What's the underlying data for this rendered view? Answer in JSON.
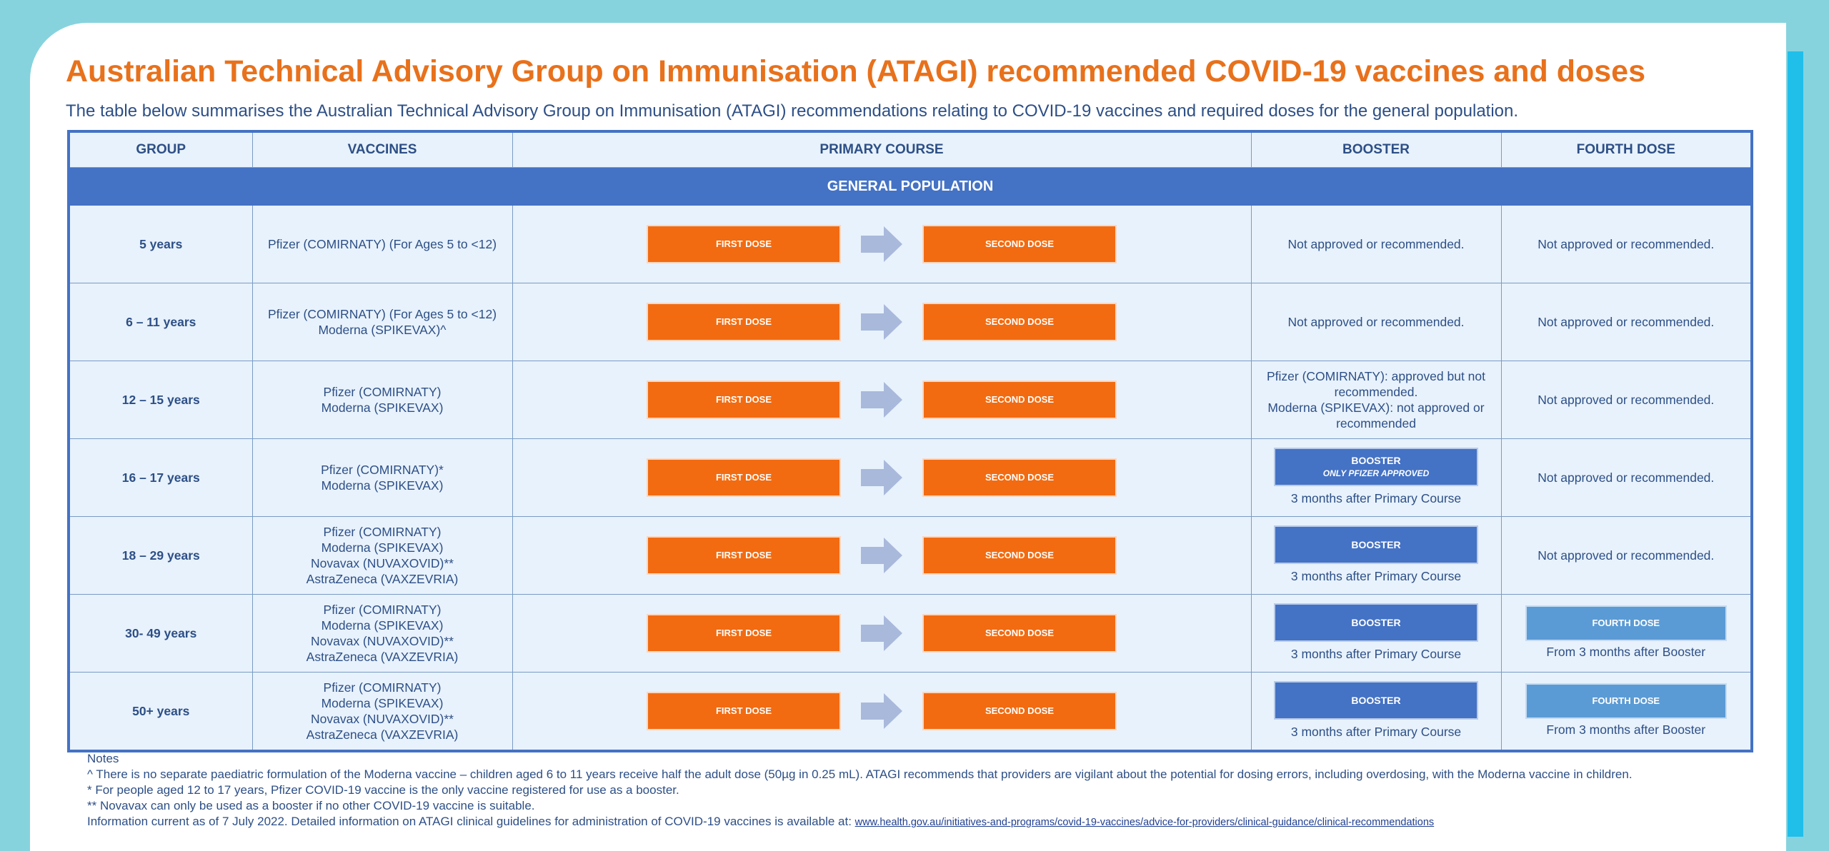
{
  "title": "Australian Technical Advisory Group on Immunisation (ATAGI) recommended COVID-19 vaccines and doses",
  "subtitle": "The table below summarises the Australian Technical Advisory Group on Immunisation (ATAGI) recommendations relating to COVID-19 vaccines and required doses for the general population.",
  "table": {
    "headers": [
      "GROUP",
      "VACCINES",
      "PRIMARY COURSE",
      "BOOSTER",
      "FOURTH DOSE"
    ],
    "section_label": "GENERAL POPULATION",
    "first_dose_label": "FIRST DOSE",
    "second_dose_label": "SECOND DOSE",
    "rows": [
      {
        "group": "5 years",
        "vaccines": [
          "Pfizer (COMIRNATY) (For Ages 5 to <12)"
        ],
        "booster_text": [
          "Not approved or recommended."
        ],
        "fourth_text": "Not approved or recommended."
      },
      {
        "group": "6 – 11 years",
        "vaccines": [
          "Pfizer (COMIRNATY) (For Ages 5 to <12)",
          "Moderna (SPIKEVAX)^"
        ],
        "booster_text": [
          "Not approved or recommended."
        ],
        "fourth_text": "Not approved or recommended."
      },
      {
        "group": "12 – 15 years",
        "vaccines": [
          "Pfizer (COMIRNATY)",
          "Moderna (SPIKEVAX)"
        ],
        "booster_text": [
          "Pfizer (COMIRNATY): approved but not",
          "recommended.",
          "Moderna (SPIKEVAX): not approved or",
          "recommended"
        ],
        "fourth_text": "Not approved or recommended."
      },
      {
        "group": "16 – 17 years",
        "vaccines": [
          "Pfizer (COMIRNATY)*",
          "Moderna (SPIKEVAX)"
        ],
        "booster_label": "BOOSTER",
        "booster_note": "ONLY PFIZER APPROVED",
        "booster_after": "3 months after Primary Course",
        "fourth_text": "Not approved or recommended."
      },
      {
        "group": "18 – 29 years",
        "vaccines": [
          "Pfizer (COMIRNATY)",
          "Moderna (SPIKEVAX)",
          "Novavax (NUVAXOVID)**",
          "AstraZeneca (VAXZEVRIA)"
        ],
        "booster_label": "BOOSTER",
        "booster_after": "3 months after Primary Course",
        "fourth_text": "Not approved or recommended."
      },
      {
        "group": "30- 49 years",
        "vaccines": [
          "Pfizer (COMIRNATY)",
          "Moderna (SPIKEVAX)",
          "Novavax (NUVAXOVID)**",
          "AstraZeneca (VAXZEVRIA)"
        ],
        "booster_label": "BOOSTER",
        "booster_after": "3 months after Primary Course",
        "fourth_label": "FOURTH DOSE",
        "fourth_after": "From 3 months after Booster"
      },
      {
        "group": "50+ years",
        "vaccines": [
          "Pfizer (COMIRNATY)",
          "Moderna (SPIKEVAX)",
          "Novavax (NUVAXOVID)**",
          "AstraZeneca (VAXZEVRIA)"
        ],
        "booster_label": "BOOSTER",
        "booster_after": "3 months after Primary Course",
        "fourth_label": "FOURTH DOSE",
        "fourth_after": "From 3 months after Booster"
      }
    ]
  },
  "notes": {
    "heading": "Notes",
    "items": [
      "^   There is no separate paediatric formulation of the Moderna vaccine – children aged 6 to 11 years receive half the adult dose (50µg in 0.25 mL). ATAGI recommends that providers are vigilant about the potential for dosing errors, including overdosing, with the Moderna vaccine in children.",
      "*   For people aged 12 to 17 years, Pfizer COVID-19 vaccine is the only vaccine registered for use as a booster.",
      "** Novavax can only be used as a booster if no other COVID-19 vaccine is suitable."
    ],
    "info_prefix": "Information current as of 7 July 2022. Detailed information on ATAGI clinical guidelines for administration of COVID-19 vaccines is available at: ",
    "link_text": "www.health.gov.au/initiatives-and-programs/covid-19-vaccines/advice-for-providers/clinical-guidance/clinical-recommendations"
  },
  "colors": {
    "background": "#86d3de",
    "accent_bar": "#1fbfea",
    "title": "#e8711c",
    "text": "#2d4f86",
    "dose": "#f26b11",
    "booster": "#4472c4",
    "fourth": "#5b9bd5",
    "arrow": "#a9b9dc",
    "cell": "#e8f2fc"
  }
}
